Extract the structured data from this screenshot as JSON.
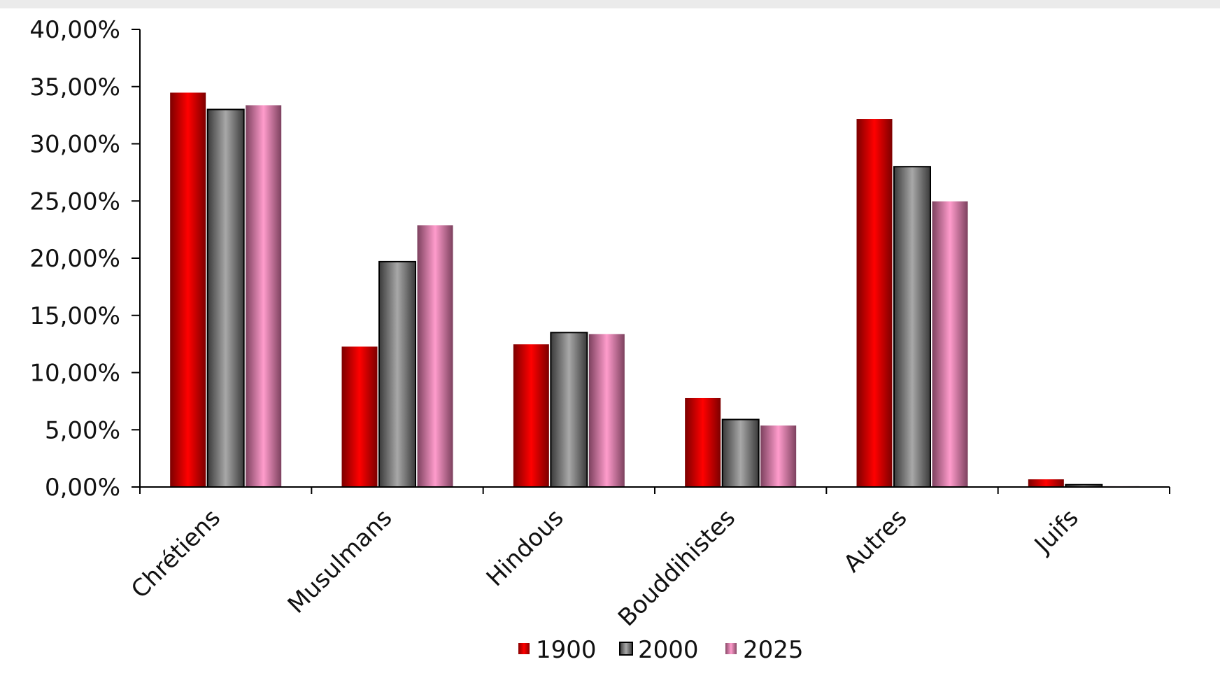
{
  "chart_data": {
    "type": "bar",
    "categories": [
      "Chrétiens",
      "Musulmans",
      "Hindous",
      "Bouddihistes",
      "Autres",
      "Juifs"
    ],
    "series": [
      {
        "name": "1900",
        "values": [
          34.5,
          12.3,
          12.5,
          7.8,
          32.2,
          0.7
        ],
        "colors": [
          "#7a0000",
          "#ff0000"
        ]
      },
      {
        "name": "2000",
        "values": [
          33.0,
          19.7,
          13.5,
          5.9,
          28.0,
          0.2
        ],
        "colors": [
          "#3a3a3a",
          "#a8a8a8"
        ]
      },
      {
        "name": "2025",
        "values": [
          33.4,
          22.9,
          13.4,
          5.4,
          25.0,
          0.1
        ],
        "colors": [
          "#7a3f5c",
          "#ff9ccc"
        ]
      }
    ],
    "yticks": [
      "0,00%",
      "5,00%",
      "10,00%",
      "15,00%",
      "20,00%",
      "25,00%",
      "30,00%",
      "35,00%",
      "40,00%"
    ],
    "ylim": [
      0,
      40
    ],
    "xlabel": "",
    "ylabel": "",
    "legend_position": "bottom",
    "grid": false
  }
}
